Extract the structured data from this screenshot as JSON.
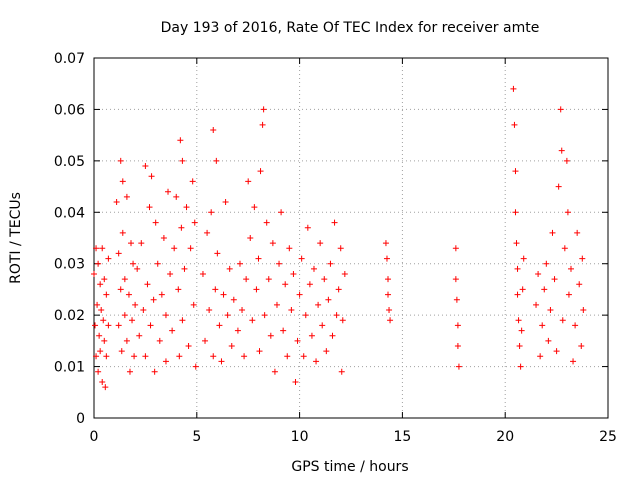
{
  "chart_data": {
    "type": "scatter",
    "title": "Day 193 of 2016, Rate Of TEC Index for receiver amte",
    "xlabel": "GPS time / hours",
    "ylabel": "ROTI / TECUs",
    "xlim": [
      0,
      25
    ],
    "ylim": [
      0,
      0.07
    ],
    "xticks": [
      "0",
      "5",
      "10",
      "15",
      "20",
      "25"
    ],
    "yticks": [
      "0",
      "0.01",
      "0.02",
      "0.03",
      "0.04",
      "0.05",
      "0.06",
      "0.07"
    ],
    "grid": true,
    "marker": "plus",
    "color": "#ff0000",
    "series": [
      {
        "points": [
          [
            0.0,
            0.028
          ],
          [
            0.05,
            0.018
          ],
          [
            0.1,
            0.033
          ],
          [
            0.1,
            0.012
          ],
          [
            0.15,
            0.022
          ],
          [
            0.2,
            0.009
          ],
          [
            0.2,
            0.03
          ],
          [
            0.25,
            0.016
          ],
          [
            0.3,
            0.026
          ],
          [
            0.3,
            0.013
          ],
          [
            0.35,
            0.021
          ],
          [
            0.4,
            0.007
          ],
          [
            0.4,
            0.033
          ],
          [
            0.45,
            0.019
          ],
          [
            0.5,
            0.015
          ],
          [
            0.5,
            0.027
          ],
          [
            0.55,
            0.006
          ],
          [
            0.6,
            0.024
          ],
          [
            0.6,
            0.012
          ],
          [
            0.7,
            0.031
          ],
          [
            0.7,
            0.018
          ],
          [
            1.1,
            0.042
          ],
          [
            1.2,
            0.032
          ],
          [
            1.2,
            0.018
          ],
          [
            1.3,
            0.05
          ],
          [
            1.3,
            0.025
          ],
          [
            1.35,
            0.013
          ],
          [
            1.4,
            0.046
          ],
          [
            1.4,
            0.036
          ],
          [
            1.5,
            0.02
          ],
          [
            1.5,
            0.027
          ],
          [
            1.6,
            0.043
          ],
          [
            1.6,
            0.015
          ],
          [
            1.7,
            0.024
          ],
          [
            1.75,
            0.009
          ],
          [
            1.8,
            0.034
          ],
          [
            1.85,
            0.019
          ],
          [
            1.9,
            0.03
          ],
          [
            1.95,
            0.012
          ],
          [
            2.0,
            0.022
          ],
          [
            2.1,
            0.029
          ],
          [
            2.2,
            0.016
          ],
          [
            2.3,
            0.034
          ],
          [
            2.4,
            0.021
          ],
          [
            2.5,
            0.049
          ],
          [
            2.5,
            0.012
          ],
          [
            2.6,
            0.026
          ],
          [
            2.7,
            0.041
          ],
          [
            2.75,
            0.018
          ],
          [
            2.8,
            0.047
          ],
          [
            2.9,
            0.023
          ],
          [
            2.95,
            0.009
          ],
          [
            3.0,
            0.038
          ],
          [
            3.1,
            0.03
          ],
          [
            3.2,
            0.015
          ],
          [
            3.3,
            0.024
          ],
          [
            3.4,
            0.035
          ],
          [
            3.5,
            0.011
          ],
          [
            3.5,
            0.02
          ],
          [
            3.6,
            0.044
          ],
          [
            3.7,
            0.028
          ],
          [
            3.8,
            0.017
          ],
          [
            3.9,
            0.033
          ],
          [
            4.0,
            0.043
          ],
          [
            4.1,
            0.025
          ],
          [
            4.15,
            0.012
          ],
          [
            4.2,
            0.054
          ],
          [
            4.25,
            0.037
          ],
          [
            4.3,
            0.05
          ],
          [
            4.3,
            0.019
          ],
          [
            4.4,
            0.029
          ],
          [
            4.5,
            0.041
          ],
          [
            4.6,
            0.014
          ],
          [
            4.7,
            0.033
          ],
          [
            4.8,
            0.046
          ],
          [
            4.85,
            0.022
          ],
          [
            4.9,
            0.038
          ],
          [
            4.95,
            0.01
          ],
          [
            5.3,
            0.028
          ],
          [
            5.4,
            0.015
          ],
          [
            5.5,
            0.036
          ],
          [
            5.6,
            0.021
          ],
          [
            5.7,
            0.04
          ],
          [
            5.8,
            0.056
          ],
          [
            5.8,
            0.012
          ],
          [
            5.9,
            0.025
          ],
          [
            5.95,
            0.05
          ],
          [
            6.0,
            0.032
          ],
          [
            6.1,
            0.018
          ],
          [
            6.2,
            0.011
          ],
          [
            6.3,
            0.024
          ],
          [
            6.4,
            0.042
          ],
          [
            6.5,
            0.02
          ],
          [
            6.6,
            0.029
          ],
          [
            6.7,
            0.014
          ],
          [
            6.8,
            0.023
          ],
          [
            7.0,
            0.017
          ],
          [
            7.1,
            0.03
          ],
          [
            7.2,
            0.021
          ],
          [
            7.3,
            0.012
          ],
          [
            7.4,
            0.027
          ],
          [
            7.5,
            0.046
          ],
          [
            7.6,
            0.035
          ],
          [
            7.7,
            0.019
          ],
          [
            7.8,
            0.041
          ],
          [
            7.9,
            0.025
          ],
          [
            8.0,
            0.031
          ],
          [
            8.05,
            0.013
          ],
          [
            8.1,
            0.048
          ],
          [
            8.2,
            0.057
          ],
          [
            8.25,
            0.06
          ],
          [
            8.3,
            0.02
          ],
          [
            8.4,
            0.038
          ],
          [
            8.5,
            0.027
          ],
          [
            8.6,
            0.016
          ],
          [
            8.7,
            0.034
          ],
          [
            8.8,
            0.009
          ],
          [
            8.9,
            0.022
          ],
          [
            9.0,
            0.03
          ],
          [
            9.1,
            0.04
          ],
          [
            9.2,
            0.017
          ],
          [
            9.3,
            0.026
          ],
          [
            9.4,
            0.012
          ],
          [
            9.5,
            0.033
          ],
          [
            9.6,
            0.021
          ],
          [
            9.7,
            0.028
          ],
          [
            9.8,
            0.007
          ],
          [
            9.9,
            0.015
          ],
          [
            10.0,
            0.024
          ],
          [
            10.1,
            0.031
          ],
          [
            10.2,
            0.012
          ],
          [
            10.3,
            0.02
          ],
          [
            10.4,
            0.037
          ],
          [
            10.5,
            0.026
          ],
          [
            10.6,
            0.016
          ],
          [
            10.7,
            0.029
          ],
          [
            10.8,
            0.011
          ],
          [
            10.9,
            0.022
          ],
          [
            11.0,
            0.034
          ],
          [
            11.1,
            0.018
          ],
          [
            11.2,
            0.027
          ],
          [
            11.3,
            0.013
          ],
          [
            11.4,
            0.023
          ],
          [
            11.5,
            0.03
          ],
          [
            11.6,
            0.016
          ],
          [
            11.7,
            0.038
          ],
          [
            11.8,
            0.02
          ],
          [
            11.9,
            0.025
          ],
          [
            12.0,
            0.033
          ],
          [
            12.05,
            0.009
          ],
          [
            12.1,
            0.019
          ],
          [
            12.2,
            0.028
          ],
          [
            14.2,
            0.034
          ],
          [
            14.25,
            0.031
          ],
          [
            14.3,
            0.027
          ],
          [
            14.3,
            0.024
          ],
          [
            14.35,
            0.021
          ],
          [
            14.4,
            0.019
          ],
          [
            17.6,
            0.033
          ],
          [
            17.6,
            0.027
          ],
          [
            17.65,
            0.023
          ],
          [
            17.7,
            0.018
          ],
          [
            17.7,
            0.014
          ],
          [
            17.75,
            0.01
          ],
          [
            20.4,
            0.064
          ],
          [
            20.45,
            0.057
          ],
          [
            20.5,
            0.048
          ],
          [
            20.5,
            0.04
          ],
          [
            20.55,
            0.034
          ],
          [
            20.6,
            0.029
          ],
          [
            20.6,
            0.024
          ],
          [
            20.65,
            0.019
          ],
          [
            20.7,
            0.014
          ],
          [
            20.75,
            0.01
          ],
          [
            20.8,
            0.017
          ],
          [
            20.85,
            0.025
          ],
          [
            20.9,
            0.031
          ],
          [
            21.5,
            0.022
          ],
          [
            21.6,
            0.028
          ],
          [
            21.7,
            0.012
          ],
          [
            21.8,
            0.018
          ],
          [
            21.9,
            0.025
          ],
          [
            22.0,
            0.03
          ],
          [
            22.1,
            0.015
          ],
          [
            22.2,
            0.021
          ],
          [
            22.3,
            0.036
          ],
          [
            22.4,
            0.027
          ],
          [
            22.5,
            0.013
          ],
          [
            22.6,
            0.045
          ],
          [
            22.7,
            0.06
          ],
          [
            22.75,
            0.052
          ],
          [
            22.8,
            0.019
          ],
          [
            22.9,
            0.033
          ],
          [
            23.0,
            0.05
          ],
          [
            23.05,
            0.04
          ],
          [
            23.1,
            0.024
          ],
          [
            23.2,
            0.029
          ],
          [
            23.3,
            0.011
          ],
          [
            23.4,
            0.018
          ],
          [
            23.5,
            0.036
          ],
          [
            23.6,
            0.026
          ],
          [
            23.7,
            0.014
          ],
          [
            23.75,
            0.031
          ],
          [
            23.8,
            0.021
          ]
        ]
      }
    ]
  }
}
